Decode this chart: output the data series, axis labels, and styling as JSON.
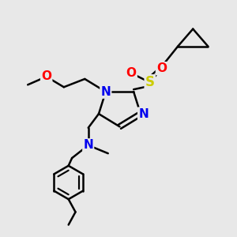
{
  "background_color": "#e8e8e8",
  "bond_color": "#000000",
  "bond_width": 1.8,
  "atom_colors": {
    "N": "#0000ee",
    "O": "#ff0000",
    "S": "#cccc00",
    "C": "#000000"
  },
  "figsize": [
    3.0,
    3.0
  ],
  "dpi": 100,
  "xlim": [
    0,
    10
  ],
  "ylim": [
    0,
    10
  ]
}
